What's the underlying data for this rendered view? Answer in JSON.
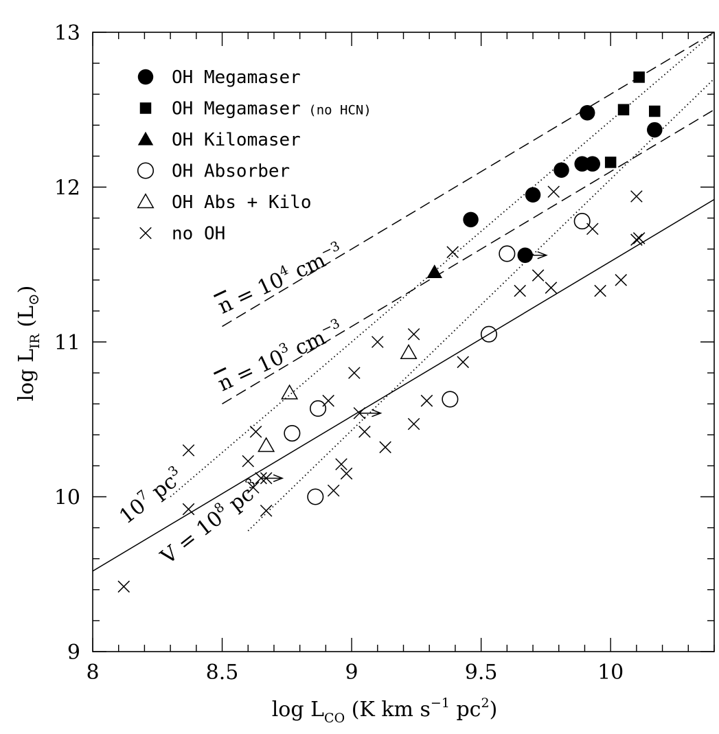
{
  "chart_data": {
    "type": "scatter",
    "xlabel": {
      "main": "log L",
      "sub": "CO",
      "units_pre": " (K km s",
      "units_sup1": "−1",
      "units_mid": " pc",
      "units_sup2": "2",
      "units_post": ")"
    },
    "ylabel": {
      "main": "log L",
      "sub": "IR",
      "units": " (L",
      "units_sub": "⊙",
      "units_post": ")"
    },
    "xlim": [
      8.0,
      10.4
    ],
    "ylim": [
      9,
      13
    ],
    "xticks": [
      "8",
      "8.5",
      "9",
      "9.5",
      "10"
    ],
    "yticks": [
      "9",
      "10",
      "11",
      "12",
      "13"
    ],
    "legend_position": "top-left",
    "series": [
      {
        "name": "OH Megamaser",
        "marker": "filled-circle",
        "points": [
          [
            9.46,
            11.79
          ],
          [
            9.7,
            11.95
          ],
          [
            9.81,
            12.11
          ],
          [
            9.89,
            12.15
          ],
          [
            9.93,
            12.15
          ],
          [
            9.91,
            12.48
          ],
          [
            10.17,
            12.37
          ],
          [
            9.67,
            11.56
          ]
        ]
      },
      {
        "name": "OH Megamaser",
        "name_suffix": " (no HCN)",
        "marker": "filled-square",
        "points": [
          [
            10.11,
            12.71
          ],
          [
            10.05,
            12.5
          ],
          [
            10.17,
            12.49
          ],
          [
            10.0,
            12.16
          ]
        ]
      },
      {
        "name": "OH Kilomaser",
        "marker": "filled-triangle",
        "points": [
          [
            9.32,
            11.45
          ]
        ]
      },
      {
        "name": "OH Absorber",
        "marker": "open-circle",
        "points": [
          [
            9.6,
            11.57
          ],
          [
            9.89,
            11.78
          ],
          [
            9.53,
            11.05
          ],
          [
            9.38,
            10.63
          ],
          [
            8.87,
            10.57
          ],
          [
            8.77,
            10.41
          ],
          [
            8.86,
            10.0
          ]
        ]
      },
      {
        "name": "OH Abs + Kilo",
        "marker": "open-triangle",
        "points": [
          [
            8.76,
            10.67
          ],
          [
            9.22,
            10.93
          ],
          [
            8.67,
            10.33
          ]
        ]
      },
      {
        "name": "no OH",
        "marker": "cross",
        "points": [
          [
            9.78,
            11.97
          ],
          [
            10.1,
            11.94
          ],
          [
            9.39,
            11.58
          ],
          [
            9.93,
            11.73
          ],
          [
            10.1,
            11.66
          ],
          [
            10.11,
            11.67
          ],
          [
            9.72,
            11.43
          ],
          [
            9.65,
            11.33
          ],
          [
            9.77,
            11.35
          ],
          [
            9.96,
            11.33
          ],
          [
            10.04,
            11.4
          ],
          [
            9.1,
            11.0
          ],
          [
            9.24,
            11.05
          ],
          [
            9.43,
            10.87
          ],
          [
            9.01,
            10.8
          ],
          [
            8.91,
            10.62
          ],
          [
            9.29,
            10.62
          ],
          [
            9.03,
            10.54
          ],
          [
            8.63,
            10.42
          ],
          [
            9.05,
            10.42
          ],
          [
            9.24,
            10.47
          ],
          [
            8.37,
            10.3
          ],
          [
            9.13,
            10.32
          ],
          [
            8.6,
            10.23
          ],
          [
            8.96,
            10.21
          ],
          [
            8.98,
            10.15
          ],
          [
            8.65,
            10.12
          ],
          [
            8.62,
            10.06
          ],
          [
            8.67,
            10.12
          ],
          [
            8.93,
            10.04
          ],
          [
            8.37,
            9.92
          ],
          [
            8.67,
            9.91
          ],
          [
            8.12,
            9.42
          ]
        ]
      }
    ],
    "arrows": [
      [
        9.67,
        11.56
      ],
      [
        9.03,
        10.54
      ],
      [
        8.65,
        10.12
      ]
    ],
    "lines": [
      {
        "style": "solid",
        "x1": 8.0,
        "y1": 9.52,
        "x2": 10.4,
        "y2": 11.92
      },
      {
        "style": "dashed",
        "x1": 8.5,
        "y1": 11.1,
        "x2": 10.4,
        "y2": 13.0
      },
      {
        "style": "dashed",
        "x1": 8.5,
        "y1": 10.6,
        "x2": 10.4,
        "y2": 12.5
      },
      {
        "style": "dotted",
        "x1": 8.3,
        "y1": 10.0,
        "x2": 10.4,
        "y2": 13.0
      },
      {
        "style": "dotted",
        "x1": 8.6,
        "y1": 9.78,
        "x2": 10.4,
        "y2": 12.7
      }
    ],
    "annotations": [
      {
        "key": "n4",
        "bar": "n",
        "eq": " = 10",
        "sup": "4",
        "unit": " cm",
        "unit_sup": "−3",
        "x": 8.5,
        "y": 11.18,
        "angle": -25
      },
      {
        "key": "n3",
        "bar": "n",
        "eq": " = 10",
        "sup": "3",
        "unit": " cm",
        "unit_sup": "−3",
        "x": 8.5,
        "y": 10.68,
        "angle": -25
      },
      {
        "key": "v7",
        "pre": "10",
        "sup": "7",
        "unit": " pc",
        "unit_sup": "3",
        "x": 8.13,
        "y": 9.82,
        "angle": -38
      },
      {
        "key": "v8",
        "pre": "V = 10",
        "sup": "8",
        "unit": " pc",
        "unit_sup": "3",
        "x": 8.29,
        "y": 9.56,
        "angle": -38
      }
    ]
  }
}
